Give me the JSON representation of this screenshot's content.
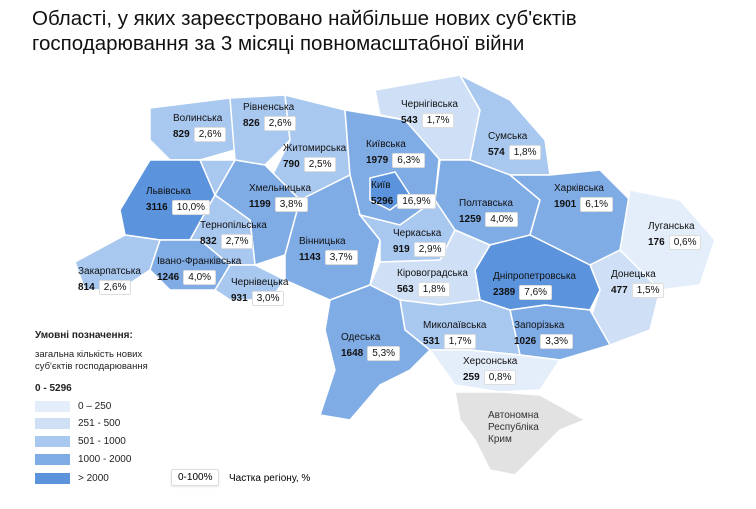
{
  "title": "Області, у яких зареєстровано найбільше нових суб'єктів господарювання за 3 місяці повномасштабної війни",
  "colors": {
    "c0": "#e4eefb",
    "c1": "#cfe0f6",
    "c2": "#a9c8ef",
    "c3": "#80ace6",
    "c4": "#5b93dc",
    "crimea": "#e2e2e2"
  },
  "regions": [
    {
      "name": "Волинська",
      "value": "829",
      "share": "2,6%"
    },
    {
      "name": "Рівненська",
      "value": "826",
      "share": "2,6%"
    },
    {
      "name": "Чернігівська",
      "value": "543",
      "share": "1,7%"
    },
    {
      "name": "Сумська",
      "value": "574",
      "share": "1,8%"
    },
    {
      "name": "Житомирська",
      "value": "790",
      "share": "2,5%"
    },
    {
      "name": "Київська",
      "value": "1979",
      "share": "6,3%"
    },
    {
      "name": "Київ",
      "value": "5296",
      "share": "16,9%"
    },
    {
      "name": "Львівська",
      "value": "3116",
      "share": "10,0%"
    },
    {
      "name": "Хмельницька",
      "value": "1199",
      "share": "3,8%"
    },
    {
      "name": "Полтавська",
      "value": "1259",
      "share": "4,0%"
    },
    {
      "name": "Харківська",
      "value": "1901",
      "share": "6,1%"
    },
    {
      "name": "Луганська",
      "value": "176",
      "share": "0,6%"
    },
    {
      "name": "Тернопільська",
      "value": "832",
      "share": "2,7%"
    },
    {
      "name": "Вінницька",
      "value": "1143",
      "share": "3,7%"
    },
    {
      "name": "Черкаська",
      "value": "919",
      "share": "2,9%"
    },
    {
      "name": "Закарпатська",
      "value": "814",
      "share": "2,6%"
    },
    {
      "name": "Івано-Франківська",
      "value": "1246",
      "share": "4,0%"
    },
    {
      "name": "Чернівецька",
      "value": "931",
      "share": "3,0%"
    },
    {
      "name": "Кіровоградська",
      "value": "563",
      "share": "1,8%"
    },
    {
      "name": "Дніпропетровська",
      "value": "2389",
      "share": "7,6%"
    },
    {
      "name": "Донецька",
      "value": "477",
      "share": "1,5%"
    },
    {
      "name": "Одеська",
      "value": "1648",
      "share": "5,3%"
    },
    {
      "name": "Миколаївська",
      "value": "531",
      "share": "1,7%"
    },
    {
      "name": "Запорізька",
      "value": "1026",
      "share": "3,3%"
    },
    {
      "name": "Херсонська",
      "value": "259",
      "share": "0,8%"
    }
  ],
  "crimea": "Автономна Республіка Крим",
  "legend": {
    "title": "Умовні позначення:",
    "subtitle": "загальна кількість нових суб'єктів господарювання",
    "range": "0 - 5296",
    "items": [
      "0 – 250",
      "251 - 500",
      "501 - 1000",
      "1000 - 2000",
      "> 2000"
    ],
    "share_box": "0-100%",
    "share_label": "Частка регіону, %"
  }
}
